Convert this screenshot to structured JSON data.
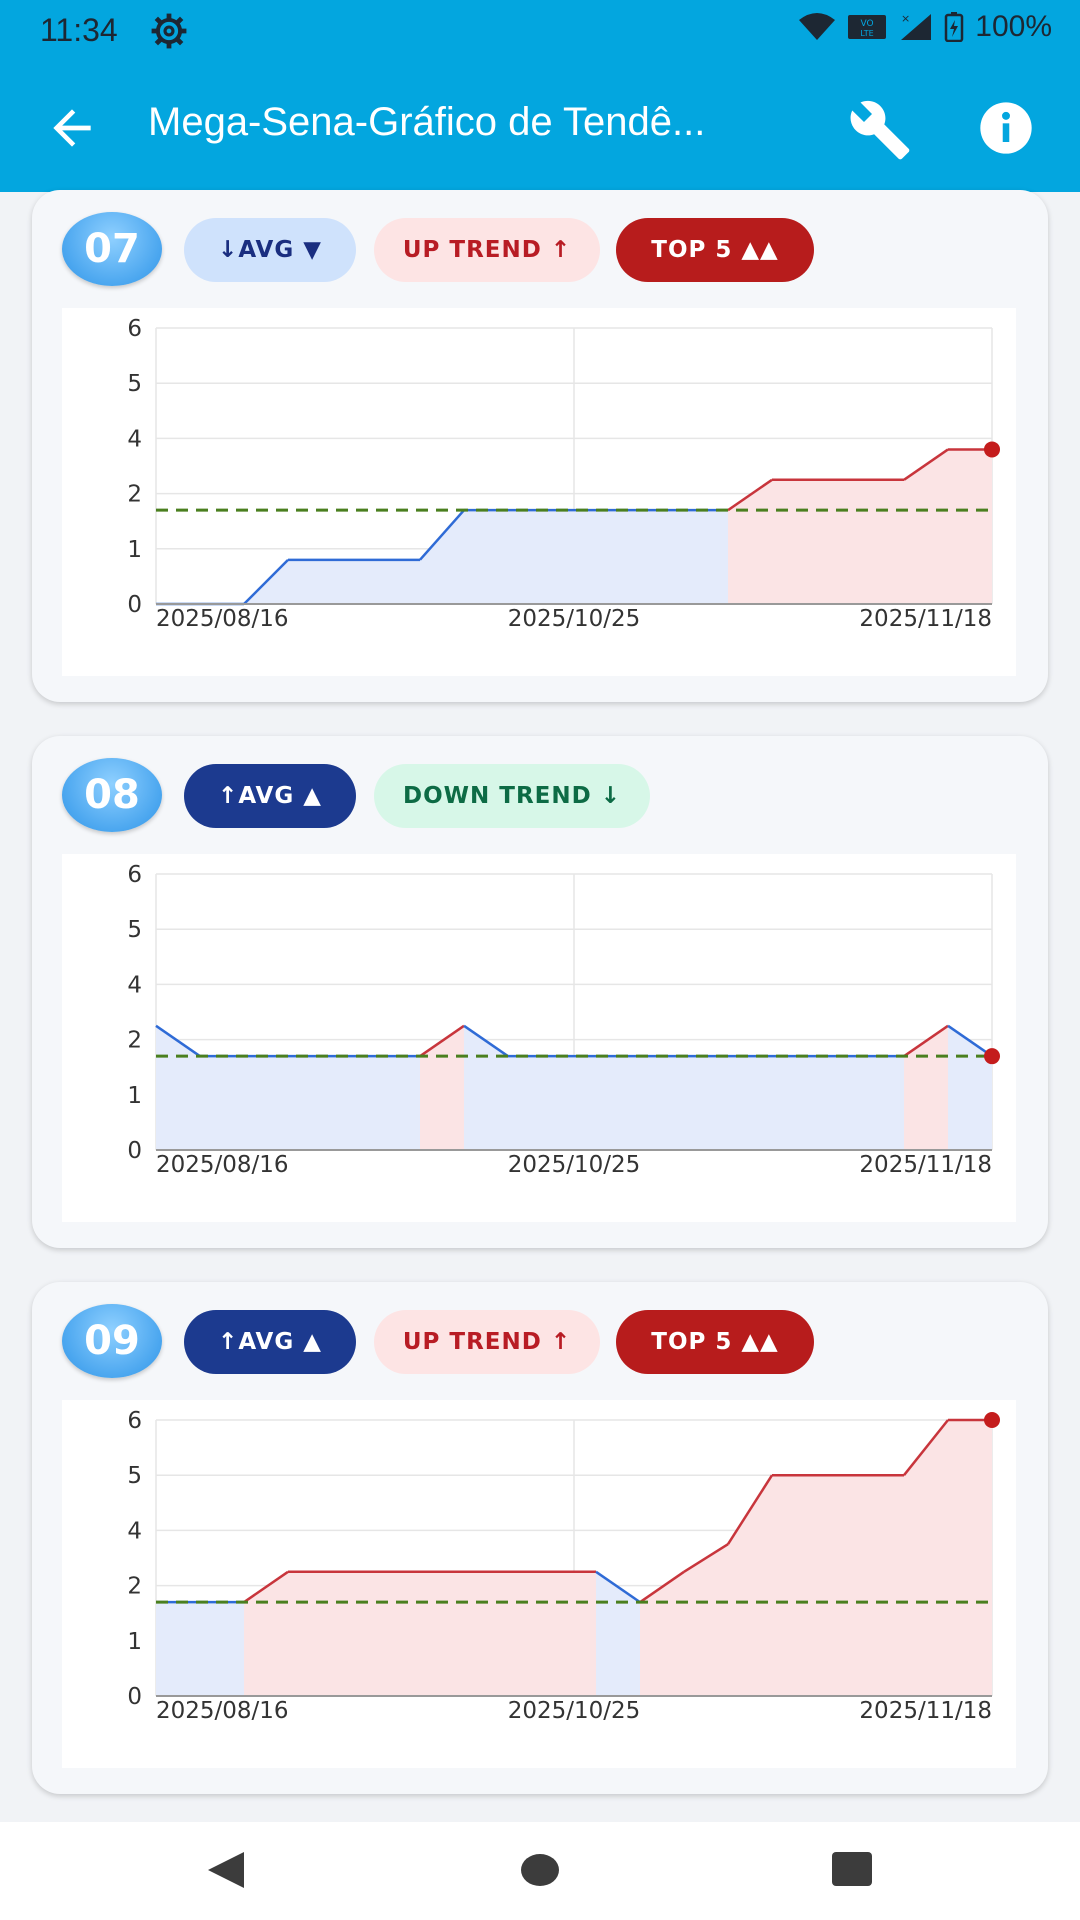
{
  "status_bar": {
    "time": "11:34",
    "battery": "100%"
  },
  "toolbar": {
    "title": "Mega-Sena-Gráfico de Tendê..."
  },
  "icons": {
    "back": "arrow-back-icon",
    "wrench": "wrench-icon",
    "info": "info-icon",
    "gear": "gear-icon"
  },
  "colors": {
    "header": "#03a6df",
    "avg_line": "#4a7f1f",
    "up_line": "#c8353c",
    "normal_line": "#2f6bd6",
    "up_fill": "#fbe4e5",
    "normal_fill": "#e4ebfb"
  },
  "cards": [
    {
      "number": "07",
      "chips": [
        {
          "label": "↓AVG ▼",
          "style": "avg-down"
        },
        {
          "label": "UP TREND ↑",
          "style": "up"
        },
        {
          "label": "TOP 5 ▲▲",
          "style": "top"
        }
      ]
    },
    {
      "number": "08",
      "chips": [
        {
          "label": "↑AVG ▲",
          "style": "avg-up"
        },
        {
          "label": "DOWN TREND ↓",
          "style": "down"
        }
      ]
    },
    {
      "number": "09",
      "chips": [
        {
          "label": "↑AVG ▲",
          "style": "avg-up"
        },
        {
          "label": "UP TREND ↑",
          "style": "up"
        },
        {
          "label": "TOP 5 ▲▲",
          "style": "top"
        }
      ]
    }
  ],
  "chart_data": [
    {
      "type": "area",
      "title": "",
      "x_tick_labels": [
        "2025/08/16",
        "2025/10/25",
        "2025/11/18"
      ],
      "y_tick_labels": [
        "0",
        "1",
        "2",
        "4",
        "5",
        "6"
      ],
      "y_categories": [
        0,
        1,
        2,
        4,
        5,
        6
      ],
      "ylim": [
        0,
        6
      ],
      "grid": true,
      "average_line": 1.7,
      "series": [
        {
          "x": [
            0,
            1,
            2,
            3,
            4,
            5,
            6,
            7,
            8,
            9,
            10,
            11,
            12,
            13,
            14,
            15,
            16,
            17,
            18,
            19
          ],
          "values": [
            0,
            0,
            0,
            0.8,
            0.8,
            0.8,
            0.8,
            1.7,
            1.7,
            1.7,
            1.7,
            1.7,
            1.7,
            1.7,
            2.5,
            2.5,
            2.5,
            2.5,
            3.6,
            3.6
          ],
          "state": [
            "normal",
            "normal",
            "normal",
            "normal",
            "normal",
            "normal",
            "normal",
            "normal",
            "normal",
            "normal",
            "normal",
            "normal",
            "normal",
            "normal",
            "up",
            "up",
            "up",
            "up",
            "up",
            "up"
          ]
        }
      ]
    },
    {
      "type": "area",
      "title": "",
      "x_tick_labels": [
        "2025/08/16",
        "2025/10/25",
        "2025/11/18"
      ],
      "y_tick_labels": [
        "0",
        "1",
        "2",
        "4",
        "5",
        "6"
      ],
      "y_categories": [
        0,
        1,
        2,
        4,
        5,
        6
      ],
      "ylim": [
        0,
        6
      ],
      "grid": true,
      "average_line": 1.7,
      "series": [
        {
          "x": [
            0,
            1,
            2,
            3,
            4,
            5,
            6,
            7,
            8,
            9,
            10,
            11,
            12,
            13,
            14,
            15,
            16,
            17,
            18,
            19
          ],
          "values": [
            2.5,
            1.7,
            1.7,
            1.7,
            1.7,
            1.7,
            1.7,
            2.5,
            1.7,
            1.7,
            1.7,
            1.7,
            1.7,
            1.7,
            1.7,
            1.7,
            1.7,
            1.7,
            2.5,
            1.7
          ],
          "state": [
            "normal",
            "normal",
            "normal",
            "normal",
            "normal",
            "normal",
            "normal",
            "up",
            "normal",
            "normal",
            "normal",
            "normal",
            "normal",
            "normal",
            "normal",
            "normal",
            "normal",
            "normal",
            "up",
            "normal"
          ]
        }
      ]
    },
    {
      "type": "area",
      "title": "",
      "x_tick_labels": [
        "2025/08/16",
        "2025/10/25",
        "2025/11/18"
      ],
      "y_tick_labels": [
        "0",
        "1",
        "2",
        "4",
        "5",
        "6"
      ],
      "y_categories": [
        0,
        1,
        2,
        4,
        5,
        6
      ],
      "ylim": [
        0,
        6
      ],
      "grid": true,
      "average_line": 1.7,
      "series": [
        {
          "x": [
            0,
            1,
            2,
            3,
            4,
            5,
            6,
            7,
            8,
            9,
            10,
            11,
            12,
            13,
            14,
            15,
            16,
            17,
            18,
            19
          ],
          "values": [
            1.7,
            1.7,
            1.7,
            2.5,
            2.5,
            2.5,
            2.5,
            2.5,
            2.5,
            2.5,
            2.5,
            1.7,
            2.5,
            3.5,
            5,
            5,
            5,
            5,
            6,
            6
          ],
          "state": [
            "normal",
            "normal",
            "normal",
            "up",
            "up",
            "up",
            "up",
            "up",
            "up",
            "up",
            "up",
            "normal",
            "up",
            "up",
            "up",
            "up",
            "up",
            "up",
            "up",
            "up"
          ]
        }
      ]
    }
  ]
}
